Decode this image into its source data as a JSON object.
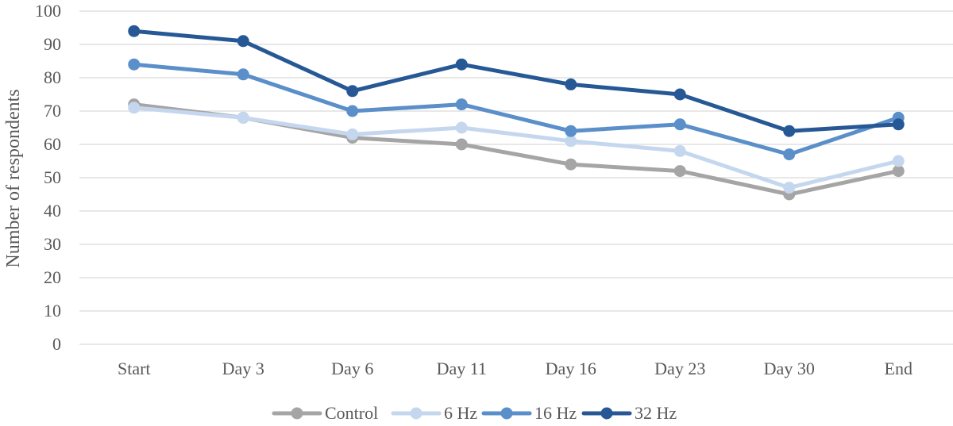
{
  "chart_data": {
    "type": "line",
    "title": "",
    "xlabel": "",
    "ylabel": "Number of respondents",
    "ylim": [
      0,
      100
    ],
    "yticks": [
      0,
      10,
      20,
      30,
      40,
      50,
      60,
      70,
      80,
      90,
      100
    ],
    "grid": true,
    "legend_position": "bottom",
    "categories": [
      "Start",
      "Day 3",
      "Day 6",
      "Day 11",
      "Day 16",
      "Day 23",
      "Day 30",
      "End"
    ],
    "series": [
      {
        "name": "Control",
        "color": "#a5a5a5",
        "values": [
          72,
          68,
          62,
          60,
          54,
          52,
          45,
          52
        ]
      },
      {
        "name": "6 Hz",
        "color": "#c5d7ef",
        "values": [
          71,
          68,
          63,
          65,
          61,
          58,
          47,
          55
        ]
      },
      {
        "name": "16 Hz",
        "color": "#5b8fc9",
        "values": [
          84,
          81,
          70,
          72,
          64,
          66,
          57,
          68
        ]
      },
      {
        "name": "32 Hz",
        "color": "#265895",
        "values": [
          94,
          91,
          76,
          84,
          78,
          75,
          64,
          66
        ]
      }
    ]
  }
}
